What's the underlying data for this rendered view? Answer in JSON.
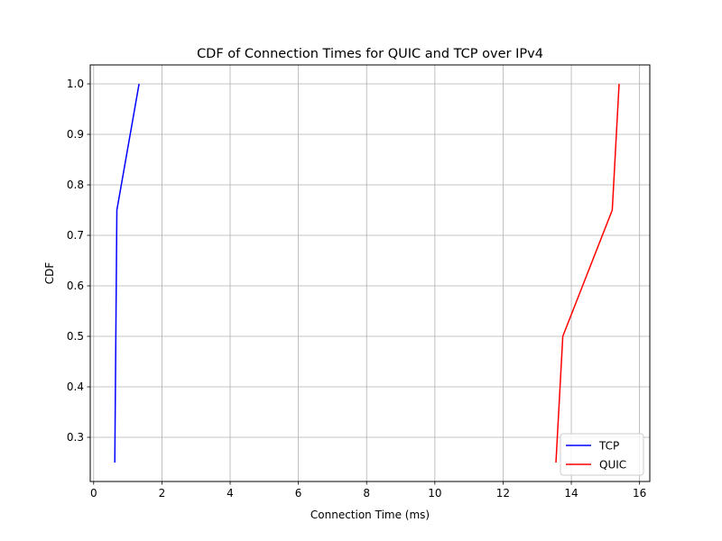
{
  "chart_data": {
    "type": "line",
    "title": "CDF of Connection Times for QUIC and TCP over IPv4",
    "xlabel": "Connection Time (ms)",
    "ylabel": "CDF",
    "xlim": [
      -0.1,
      16.3
    ],
    "ylim": [
      0.2125,
      1.0375
    ],
    "xticks": [
      0,
      2,
      4,
      6,
      8,
      10,
      12,
      14,
      16
    ],
    "xtick_labels": [
      "0",
      "2",
      "4",
      "6",
      "8",
      "10",
      "12",
      "14",
      "16"
    ],
    "yticks": [
      0.3,
      0.4,
      0.5,
      0.6,
      0.7,
      0.8,
      0.9,
      1.0
    ],
    "ytick_labels": [
      "0.3",
      "0.4",
      "0.5",
      "0.6",
      "0.7",
      "0.8",
      "0.9",
      "1.0"
    ],
    "grid": true,
    "legend_position": "bottom-right",
    "series": [
      {
        "name": "TCP",
        "color": "#0000ff",
        "x": [
          0.62,
          0.68,
          1.33
        ],
        "y": [
          0.25,
          0.75,
          1.0
        ]
      },
      {
        "name": "QUIC",
        "color": "#ff0000",
        "x": [
          13.55,
          13.75,
          15.2,
          15.4
        ],
        "y": [
          0.25,
          0.5,
          0.75,
          1.0
        ]
      }
    ]
  }
}
